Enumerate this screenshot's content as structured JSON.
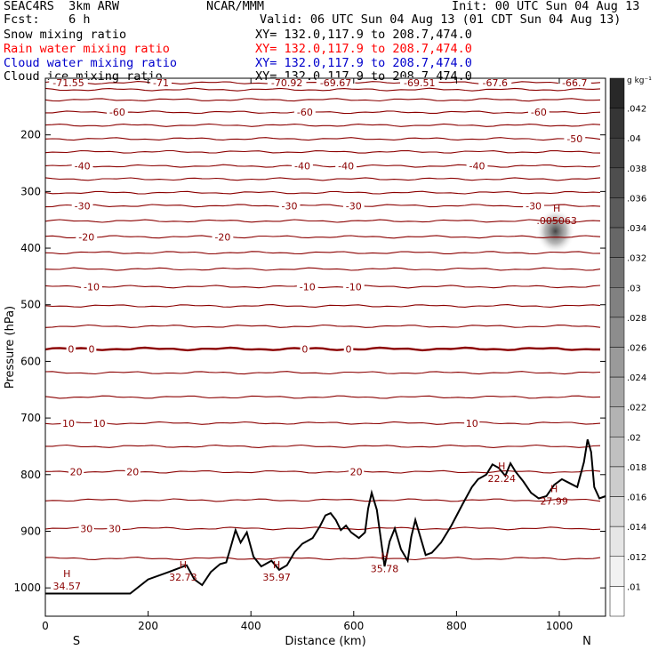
{
  "header": {
    "left_line1": "SEAC4RS  3km ARW",
    "left_line2": "Fcst:    6 h",
    "center_line1": "NCAR/MMM",
    "init": "Init: 00 UTC Sun 04 Aug 13",
    "valid": "Valid: 06 UTC Sun 04 Aug 13 (01 CDT Sun 04 Aug 13)",
    "fields": [
      {
        "label": "Snow mixing ratio",
        "xy": "XY= 132.0,117.9 to 208.7,474.0",
        "color": "#000000"
      },
      {
        "label": "Rain water mixing ratio",
        "xy": "XY= 132.0,117.9 to 208.7,474.0",
        "color": "#ff0000"
      },
      {
        "label": "Cloud water mixing ratio",
        "xy": "XY= 132.0,117.9 to 208.7,474.0",
        "color": "#0000cc"
      },
      {
        "label": "Cloud ice mixing ratio",
        "xy": "XY= 132.0,117.9 to 208.7,474.0",
        "color": "#000000"
      }
    ]
  },
  "colorbar": {
    "unit": "g kg⁻¹",
    "labels": [
      ".042",
      ".04",
      ".038",
      ".036",
      ".034",
      ".032",
      ".03",
      ".028",
      ".026",
      ".024",
      ".022",
      ".02",
      ".018",
      ".016",
      ".014",
      ".012",
      ".01"
    ]
  },
  "chart_data": {
    "type": "contour",
    "xlabel": "Distance (km)",
    "ylabel": "Pressure (hPa)",
    "xlim": [
      0,
      1090
    ],
    "ylim": [
      1050,
      100
    ],
    "x_ticks": [
      0,
      200,
      400,
      600,
      800,
      1000
    ],
    "y_ticks": [
      200,
      300,
      400,
      500,
      600,
      700,
      800,
      900,
      1000
    ],
    "x_end_labels": {
      "left": "S",
      "right": "N"
    },
    "contour_color": "#8b0000",
    "contours": [
      {
        "p": 108,
        "labels": [
          {
            "x": 45,
            "text": "-71.55"
          },
          {
            "x": 225,
            "text": "-71"
          },
          {
            "x": 470,
            "text": "-70.92"
          },
          {
            "x": 565,
            "text": "-69.67"
          },
          {
            "x": 728,
            "text": "-69.51"
          },
          {
            "x": 875,
            "text": "-67.6"
          },
          {
            "x": 1030,
            "text": "-66.7"
          }
        ]
      },
      {
        "p": 120
      },
      {
        "p": 138
      },
      {
        "p": 160,
        "labels": [
          {
            "x": 140,
            "text": "-60"
          },
          {
            "x": 505,
            "text": "-60"
          },
          {
            "x": 960,
            "text": "-60"
          }
        ]
      },
      {
        "p": 183
      },
      {
        "p": 207,
        "labels": [
          {
            "x": 1030,
            "text": "-50"
          }
        ]
      },
      {
        "p": 230
      },
      {
        "p": 255,
        "labels": [
          {
            "x": 72,
            "text": "-40"
          },
          {
            "x": 500,
            "text": "-40"
          },
          {
            "x": 585,
            "text": "-40"
          },
          {
            "x": 840,
            "text": "-40"
          }
        ]
      },
      {
        "p": 278
      },
      {
        "p": 302
      },
      {
        "p": 325,
        "labels": [
          {
            "x": 72,
            "text": "-30"
          },
          {
            "x": 475,
            "text": "-30"
          },
          {
            "x": 600,
            "text": "-30"
          },
          {
            "x": 950,
            "text": "-30"
          }
        ]
      },
      {
        "p": 352
      },
      {
        "p": 380,
        "labels": [
          {
            "x": 80,
            "text": "-20"
          },
          {
            "x": 345,
            "text": "-20"
          }
        ]
      },
      {
        "p": 408
      },
      {
        "p": 437
      },
      {
        "p": 468,
        "labels": [
          {
            "x": 90,
            "text": "-10"
          },
          {
            "x": 510,
            "text": "-10"
          },
          {
            "x": 600,
            "text": "-10"
          }
        ]
      },
      {
        "p": 502
      },
      {
        "p": 538
      },
      {
        "p": 578,
        "bold": true,
        "labels": [
          {
            "x": 50,
            "text": "0"
          },
          {
            "x": 90,
            "text": "0"
          },
          {
            "x": 505,
            "text": "0"
          },
          {
            "x": 590,
            "text": "0"
          }
        ]
      },
      {
        "p": 620
      },
      {
        "p": 663
      },
      {
        "p": 709,
        "labels": [
          {
            "x": 45,
            "text": "10"
          },
          {
            "x": 105,
            "text": "10"
          },
          {
            "x": 830,
            "text": "10"
          }
        ]
      },
      {
        "p": 750
      },
      {
        "p": 795,
        "labels": [
          {
            "x": 60,
            "text": "20"
          },
          {
            "x": 170,
            "text": "20"
          },
          {
            "x": 605,
            "text": "20"
          }
        ]
      },
      {
        "p": 845
      },
      {
        "p": 895,
        "labels": [
          {
            "x": 80,
            "text": "30"
          },
          {
            "x": 135,
            "text": "30"
          }
        ]
      },
      {
        "p": 948
      }
    ],
    "extrema": [
      {
        "x": 42,
        "p": 990,
        "mark": "H",
        "value": "34.57"
      },
      {
        "x": 268,
        "p": 975,
        "mark": "H",
        "value": "32.73"
      },
      {
        "x": 450,
        "p": 975,
        "mark": "H",
        "value": "35.97"
      },
      {
        "x": 660,
        "p": 960,
        "mark": "H",
        "value": "35.78"
      },
      {
        "x": 888,
        "p": 800,
        "mark": "H",
        "value": "22.24"
      },
      {
        "x": 990,
        "p": 840,
        "mark": "H",
        "value": "27.99"
      },
      {
        "x": 995,
        "p": 345,
        "mark": "H",
        "value": ".005063"
      }
    ],
    "cloud_ice_patch": {
      "x": [
        965,
        1020
      ],
      "p": [
        330,
        410
      ],
      "max_value": 0.005063
    },
    "terrain": [
      [
        0,
        1010
      ],
      [
        165,
        1010
      ],
      [
        200,
        985
      ],
      [
        240,
        972
      ],
      [
        260,
        965
      ],
      [
        275,
        960
      ],
      [
        290,
        985
      ],
      [
        305,
        995
      ],
      [
        322,
        972
      ],
      [
        340,
        958
      ],
      [
        352,
        955
      ],
      [
        360,
        930
      ],
      [
        370,
        898
      ],
      [
        380,
        920
      ],
      [
        392,
        902
      ],
      [
        405,
        945
      ],
      [
        420,
        962
      ],
      [
        440,
        952
      ],
      [
        455,
        968
      ],
      [
        470,
        960
      ],
      [
        485,
        937
      ],
      [
        500,
        922
      ],
      [
        520,
        912
      ],
      [
        535,
        890
      ],
      [
        545,
        872
      ],
      [
        555,
        868
      ],
      [
        565,
        880
      ],
      [
        575,
        898
      ],
      [
        585,
        890
      ],
      [
        595,
        902
      ],
      [
        610,
        912
      ],
      [
        622,
        902
      ],
      [
        628,
        860
      ],
      [
        635,
        832
      ],
      [
        645,
        862
      ],
      [
        660,
        962
      ],
      [
        670,
        918
      ],
      [
        680,
        895
      ],
      [
        692,
        932
      ],
      [
        705,
        952
      ],
      [
        712,
        910
      ],
      [
        720,
        880
      ],
      [
        728,
        905
      ],
      [
        740,
        942
      ],
      [
        752,
        938
      ],
      [
        770,
        920
      ],
      [
        790,
        890
      ],
      [
        812,
        852
      ],
      [
        830,
        822
      ],
      [
        842,
        808
      ],
      [
        858,
        800
      ],
      [
        870,
        782
      ],
      [
        882,
        788
      ],
      [
        895,
        802
      ],
      [
        905,
        780
      ],
      [
        915,
        795
      ],
      [
        930,
        812
      ],
      [
        945,
        832
      ],
      [
        960,
        842
      ],
      [
        975,
        838
      ],
      [
        990,
        818
      ],
      [
        1005,
        808
      ],
      [
        1020,
        815
      ],
      [
        1035,
        822
      ],
      [
        1048,
        778
      ],
      [
        1055,
        738
      ],
      [
        1062,
        760
      ],
      [
        1068,
        822
      ],
      [
        1078,
        842
      ],
      [
        1090,
        838
      ]
    ]
  }
}
